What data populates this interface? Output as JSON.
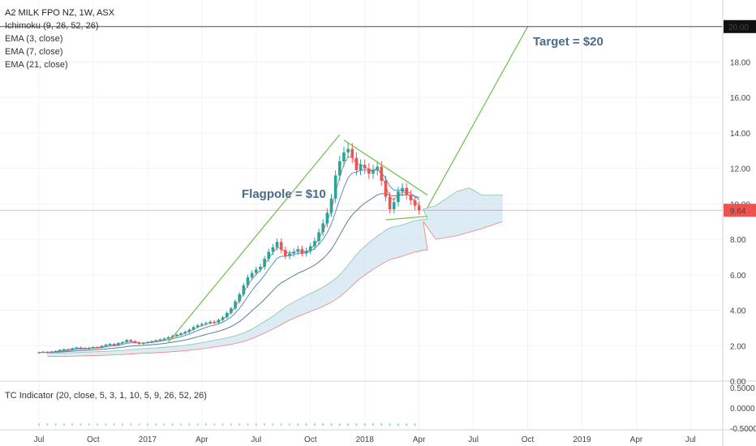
{
  "legend": {
    "symbol": "A2 MILK FPO NZ, 1W, ASX",
    "ichimoku": "Ichimoku (9, 26, 52, 26)",
    "ema3": "EMA (3, close)",
    "ema7": "EMA (7, close)",
    "ema21": "EMA (21, close)"
  },
  "indicator": {
    "label": "TC Indicator (20, close, 5, 3, 1, 10, 5, 9, 26, 52, 26)",
    "ticks": [
      "0.5000",
      "0.0000",
      "-0.5000"
    ]
  },
  "annotations": {
    "flagpole": "Flagpole = $10",
    "target": "Target = $20"
  },
  "price_labels": {
    "current": "9.64",
    "target": "20.00"
  },
  "colors": {
    "up": "#26a69a",
    "down": "#ef5350",
    "annotation_text": "#4a6b8a",
    "trendline": "#6abf4b",
    "cloud": "#cfe3f0",
    "ema_fast": "#e57373",
    "ema_mid": "#5b8bd0",
    "ema_slow": "#5b7f95",
    "current_price": "#ef5350"
  },
  "chart_data": {
    "type": "candlestick",
    "title": "A2 MILK FPO NZ, 1W, ASX",
    "timeframe": "1W",
    "y_ticks": [
      0,
      2,
      4,
      6,
      8,
      10,
      12,
      14,
      16,
      18
    ],
    "y_tick_labels": [
      "0.00",
      "2.00",
      "4.00",
      "6.00",
      "8.00",
      "10.00",
      "12.00",
      "14.00",
      "16.00",
      "18.00"
    ],
    "ylim": [
      0,
      21.5
    ],
    "x_ticks": [
      "Jul",
      "Oct",
      "2017",
      "Apr",
      "Jul",
      "Oct",
      "2018",
      "Apr",
      "Jul",
      "Oct",
      "2019",
      "Apr",
      "Jul"
    ],
    "x_tick_weeks": [
      0,
      13,
      26,
      39,
      52,
      65,
      78,
      91,
      104,
      117,
      130,
      143,
      156
    ],
    "first_week": "2016-06-13",
    "last_price": 9.64,
    "target_price": 20.0,
    "candles_close": [
      1.62,
      1.65,
      1.6,
      1.66,
      1.7,
      1.76,
      1.8,
      1.78,
      1.85,
      1.9,
      1.86,
      1.82,
      1.88,
      1.92,
      1.9,
      1.98,
      2.05,
      2.1,
      2.02,
      2.15,
      2.2,
      2.32,
      2.25,
      2.18,
      2.1,
      2.15,
      2.2,
      2.25,
      2.3,
      2.35,
      2.4,
      2.48,
      2.55,
      2.62,
      2.7,
      2.78,
      2.9,
      3.05,
      3.15,
      3.22,
      3.28,
      3.35,
      3.3,
      3.45,
      3.6,
      3.85,
      4.1,
      4.5,
      4.9,
      5.4,
      5.85,
      6.1,
      6.3,
      6.45,
      6.9,
      7.3,
      7.55,
      7.85,
      7.4,
      7.05,
      7.2,
      7.3,
      7.45,
      7.2,
      7.35,
      7.6,
      7.9,
      8.4,
      8.9,
      9.5,
      10.3,
      11.6,
      12.4,
      12.9,
      13.1,
      12.6,
      11.9,
      12.2,
      12.0,
      11.7,
      11.9,
      12.1,
      11.3,
      10.4,
      9.7,
      10.1,
      10.7,
      10.9,
      10.5,
      10.2,
      9.9,
      9.64
    ],
    "flag_pole": {
      "from": [
        31,
        2.2
      ],
      "to": [
        72,
        13.9
      ]
    },
    "flag_upper": {
      "from": [
        73,
        13.6
      ],
      "to": [
        93,
        10.5
      ]
    },
    "flag_lower": {
      "from": [
        83,
        9.1
      ],
      "to": [
        93,
        9.3
      ]
    },
    "target_line": {
      "from": [
        93,
        9.8
      ],
      "to": [
        117,
        20.0
      ]
    },
    "cloud_upper_extension": [
      [
        92,
        9.7
      ],
      [
        95,
        9.9
      ],
      [
        100,
        10.7
      ],
      [
        103,
        10.9
      ],
      [
        106,
        10.5
      ],
      [
        111,
        10.5
      ]
    ],
    "cloud_lower_extension": [
      [
        92,
        9.0
      ],
      [
        95,
        8.0
      ],
      [
        100,
        8.2
      ],
      [
        106,
        8.6
      ],
      [
        111,
        9.0
      ]
    ]
  }
}
